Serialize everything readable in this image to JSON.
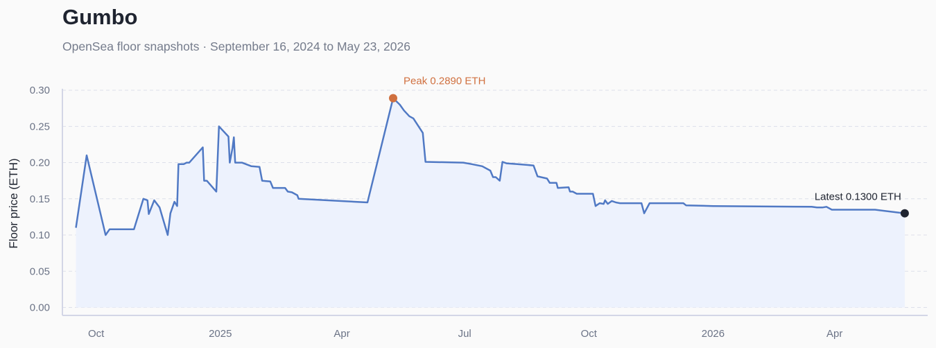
{
  "header": {
    "title": "Gumbo",
    "subtitle": "OpenSea floor snapshots · September 16, 2024 to May 23, 2026"
  },
  "colors": {
    "line": "#5079c4",
    "fill": "#edf2fd",
    "peak": "#d0703f",
    "latest": "#1f2430",
    "grid": "#dde0ea",
    "axis": "#d3d6e6"
  },
  "chart_data": {
    "type": "area",
    "title": "Gumbo",
    "xlabel": "",
    "ylabel": "Floor price (ETH)",
    "xlim": [
      "2024-09-06",
      "2026-06-09"
    ],
    "ylim": [
      -0.011,
      0.302
    ],
    "grid": "horizontal",
    "x_ticks": [
      {
        "date": "2024-10-01",
        "label": "Oct"
      },
      {
        "date": "2025-01-01",
        "label": "2025"
      },
      {
        "date": "2025-04-01",
        "label": "Apr"
      },
      {
        "date": "2025-07-01",
        "label": "Jul"
      },
      {
        "date": "2025-10-01",
        "label": "Oct"
      },
      {
        "date": "2026-01-01",
        "label": "2026"
      },
      {
        "date": "2026-04-01",
        "label": "Apr"
      }
    ],
    "y_ticks": [
      {
        "value": 0.0,
        "label": "0.00"
      },
      {
        "value": 0.05,
        "label": "0.05"
      },
      {
        "value": 0.1,
        "label": "0.10"
      },
      {
        "value": 0.15,
        "label": "0.15"
      },
      {
        "value": 0.2,
        "label": "0.20"
      },
      {
        "value": 0.25,
        "label": "0.25"
      },
      {
        "value": 0.3,
        "label": "0.30"
      }
    ],
    "series": [
      {
        "points": [
          [
            "2024-09-16",
            0.11
          ],
          [
            "2024-09-24",
            0.21
          ],
          [
            "2024-10-08",
            0.1
          ],
          [
            "2024-10-11",
            0.108
          ],
          [
            "2024-10-29",
            0.108
          ],
          [
            "2024-11-05",
            0.15
          ],
          [
            "2024-11-08",
            0.148
          ],
          [
            "2024-11-09",
            0.129
          ],
          [
            "2024-11-13",
            0.148
          ],
          [
            "2024-11-17",
            0.138
          ],
          [
            "2024-11-23",
            0.1
          ],
          [
            "2024-11-25",
            0.13
          ],
          [
            "2024-11-28",
            0.146
          ],
          [
            "2024-11-30",
            0.14
          ],
          [
            "2024-12-01",
            0.198
          ],
          [
            "2024-12-05",
            0.198
          ],
          [
            "2024-12-07",
            0.2
          ],
          [
            "2024-12-09",
            0.2
          ],
          [
            "2024-12-19",
            0.221
          ],
          [
            "2024-12-20",
            0.175
          ],
          [
            "2024-12-22",
            0.175
          ],
          [
            "2024-12-29",
            0.16
          ],
          [
            "2024-12-31",
            0.25
          ],
          [
            "2025-01-07",
            0.236
          ],
          [
            "2025-01-08",
            0.2
          ],
          [
            "2025-01-10",
            0.22
          ],
          [
            "2025-01-11",
            0.235
          ],
          [
            "2025-01-12",
            0.2
          ],
          [
            "2025-01-17",
            0.2
          ],
          [
            "2025-01-24",
            0.195
          ],
          [
            "2025-01-30",
            0.194
          ],
          [
            "2025-02-01",
            0.175
          ],
          [
            "2025-02-07",
            0.174
          ],
          [
            "2025-02-09",
            0.165
          ],
          [
            "2025-02-18",
            0.165
          ],
          [
            "2025-02-20",
            0.16
          ],
          [
            "2025-02-23",
            0.159
          ],
          [
            "2025-02-27",
            0.155
          ],
          [
            "2025-02-28",
            0.15
          ],
          [
            "2025-04-20",
            0.145
          ],
          [
            "2025-05-09",
            0.289
          ],
          [
            "2025-05-14",
            0.28
          ],
          [
            "2025-05-17",
            0.272
          ],
          [
            "2025-05-21",
            0.264
          ],
          [
            "2025-05-24",
            0.261
          ],
          [
            "2025-05-31",
            0.241
          ],
          [
            "2025-06-02",
            0.201
          ],
          [
            "2025-06-30",
            0.2
          ],
          [
            "2025-07-06",
            0.198
          ],
          [
            "2025-07-14",
            0.195
          ],
          [
            "2025-07-20",
            0.189
          ],
          [
            "2025-07-22",
            0.18
          ],
          [
            "2025-07-24",
            0.18
          ],
          [
            "2025-07-27",
            0.175
          ],
          [
            "2025-07-29",
            0.201
          ],
          [
            "2025-08-01",
            0.199
          ],
          [
            "2025-08-09",
            0.198
          ],
          [
            "2025-08-21",
            0.196
          ],
          [
            "2025-08-24",
            0.181
          ],
          [
            "2025-08-31",
            0.178
          ],
          [
            "2025-09-02",
            0.172
          ],
          [
            "2025-09-07",
            0.172
          ],
          [
            "2025-09-08",
            0.165
          ],
          [
            "2025-09-16",
            0.166
          ],
          [
            "2025-09-17",
            0.16
          ],
          [
            "2025-09-19",
            0.16
          ],
          [
            "2025-09-22",
            0.157
          ],
          [
            "2025-10-04",
            0.157
          ],
          [
            "2025-10-06",
            0.14
          ],
          [
            "2025-10-09",
            0.144
          ],
          [
            "2025-10-12",
            0.143
          ],
          [
            "2025-10-13",
            0.148
          ],
          [
            "2025-10-15",
            0.143
          ],
          [
            "2025-10-18",
            0.147
          ],
          [
            "2025-10-21",
            0.145
          ],
          [
            "2025-10-24",
            0.144
          ],
          [
            "2025-11-09",
            0.144
          ],
          [
            "2025-11-11",
            0.13
          ],
          [
            "2025-11-15",
            0.144
          ],
          [
            "2025-12-10",
            0.144
          ],
          [
            "2025-12-12",
            0.141
          ],
          [
            "2026-01-01",
            0.14
          ],
          [
            "2026-03-15",
            0.139
          ],
          [
            "2026-03-19",
            0.138
          ],
          [
            "2026-03-23",
            0.138
          ],
          [
            "2026-03-26",
            0.139
          ],
          [
            "2026-03-30",
            0.135
          ],
          [
            "2026-05-01",
            0.135
          ],
          [
            "2026-05-23",
            0.13
          ]
        ]
      }
    ],
    "annotations": {
      "peak": {
        "date": "2025-05-09",
        "value": 0.289,
        "label": "Peak 0.2890 ETH"
      },
      "latest": {
        "date": "2026-05-23",
        "value": 0.13,
        "label": "Latest 0.1300 ETH"
      }
    }
  }
}
